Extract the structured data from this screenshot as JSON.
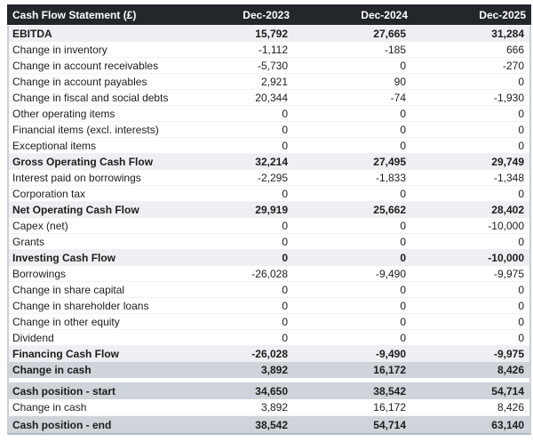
{
  "colors": {
    "header_bg": "#23272c",
    "header_text": "#ffffff",
    "subtotal_row_bg": "#edeff3",
    "total_row_bg": "#cfd4da",
    "normal_row_bg": "#ffffff",
    "text": "#1c1c1c",
    "table_border": "#cbd0d5"
  },
  "chart_data": {
    "type": "table",
    "title": "Cash Flow Statement (£)",
    "columns": [
      "Dec-2023",
      "Dec-2024",
      "Dec-2025"
    ],
    "rows": [
      {
        "label": "EBITDA",
        "values": [
          "15,792",
          "27,665",
          "31,284"
        ],
        "style": "subtotal"
      },
      {
        "label": "Change in inventory",
        "values": [
          "-1,112",
          "-185",
          "666"
        ],
        "style": "normal"
      },
      {
        "label": "Change in account receivables",
        "values": [
          "-5,730",
          "0",
          "-270"
        ],
        "style": "normal"
      },
      {
        "label": "Change in account payables",
        "values": [
          "2,921",
          "90",
          "0"
        ],
        "style": "normal"
      },
      {
        "label": "Change in fiscal and social debts",
        "values": [
          "20,344",
          "-74",
          "-1,930"
        ],
        "style": "normal"
      },
      {
        "label": "Other operating items",
        "values": [
          "0",
          "0",
          "0"
        ],
        "style": "normal"
      },
      {
        "label": "Financial items (excl. interests)",
        "values": [
          "0",
          "0",
          "0"
        ],
        "style": "normal"
      },
      {
        "label": "Exceptional items",
        "values": [
          "0",
          "0",
          "0"
        ],
        "style": "normal"
      },
      {
        "label": "Gross Operating Cash Flow",
        "values": [
          "32,214",
          "27,495",
          "29,749"
        ],
        "style": "subtotal"
      },
      {
        "label": "Interest paid on borrowings",
        "values": [
          "-2,295",
          "-1,833",
          "-1,348"
        ],
        "style": "normal"
      },
      {
        "label": "Corporation tax",
        "values": [
          "0",
          "0",
          "0"
        ],
        "style": "normal"
      },
      {
        "label": "Net Operating Cash Flow",
        "values": [
          "29,919",
          "25,662",
          "28,402"
        ],
        "style": "subtotal"
      },
      {
        "label": "Capex (net)",
        "values": [
          "0",
          "0",
          "-10,000"
        ],
        "style": "normal"
      },
      {
        "label": "Grants",
        "values": [
          "0",
          "0",
          "0"
        ],
        "style": "normal"
      },
      {
        "label": "Investing Cash Flow",
        "values": [
          "0",
          "0",
          "-10,000"
        ],
        "style": "subtotal"
      },
      {
        "label": "Borrowings",
        "values": [
          "-26,028",
          "-9,490",
          "-9,975"
        ],
        "style": "normal"
      },
      {
        "label": "Change in share capital",
        "values": [
          "0",
          "0",
          "0"
        ],
        "style": "normal"
      },
      {
        "label": "Change in shareholder loans",
        "values": [
          "0",
          "0",
          "0"
        ],
        "style": "normal"
      },
      {
        "label": "Change in other equity",
        "values": [
          "0",
          "0",
          "0"
        ],
        "style": "normal"
      },
      {
        "label": "Dividend",
        "values": [
          "0",
          "0",
          "0"
        ],
        "style": "normal"
      },
      {
        "label": "Financing Cash Flow",
        "values": [
          "-26,028",
          "-9,490",
          "-9,975"
        ],
        "style": "subtotal"
      },
      {
        "label": "Change in cash",
        "values": [
          "3,892",
          "16,172",
          "8,426"
        ],
        "style": "total"
      },
      {
        "label": "",
        "values": [
          "",
          "",
          ""
        ],
        "style": "spacer"
      },
      {
        "label": "Cash position - start",
        "values": [
          "34,650",
          "38,542",
          "54,714"
        ],
        "style": "total"
      },
      {
        "label": "Change in cash",
        "values": [
          "3,892",
          "16,172",
          "8,426"
        ],
        "style": "normal"
      },
      {
        "label": "Cash position - end",
        "values": [
          "38,542",
          "54,714",
          "63,140"
        ],
        "style": "total"
      }
    ]
  }
}
